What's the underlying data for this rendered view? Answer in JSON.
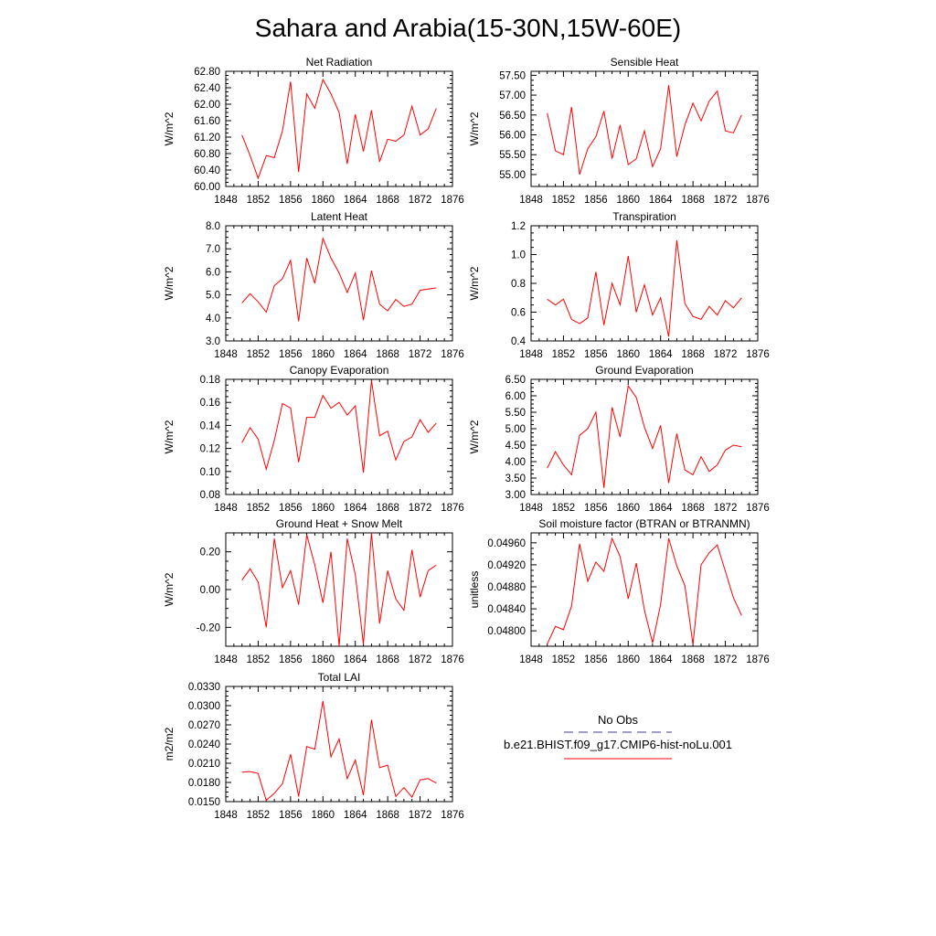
{
  "title": "Sahara and Arabia(15-30N,15W-60E)",
  "colors": {
    "series": "#ff0000",
    "obs": "#3b3b8c",
    "axis": "#000000"
  },
  "legend": {
    "obs_label": "No Obs",
    "model_label": "b.e21.BHIST.f09_g17.CMIP6-hist-noLu.001"
  },
  "chart_data": [
    {
      "type": "line",
      "title": "Net Radiation",
      "ylabel": "W/m^2",
      "xlim": [
        1848,
        1876
      ],
      "ylim": [
        60.0,
        62.8
      ],
      "x_ticks": [
        1848,
        1852,
        1856,
        1860,
        1864,
        1868,
        1872,
        1876
      ],
      "y_ticks": [
        "60.00",
        "60.40",
        "60.80",
        "61.20",
        "61.60",
        "62.00",
        "62.40",
        "62.80"
      ],
      "series": [
        {
          "x": [
            1850,
            1851,
            1852,
            1853,
            1854,
            1855,
            1856,
            1857,
            1858,
            1859,
            1860,
            1861,
            1862,
            1863,
            1864,
            1865,
            1866,
            1867,
            1868,
            1869,
            1870,
            1871,
            1872,
            1873,
            1874
          ],
          "values": [
            61.25,
            60.75,
            60.2,
            60.75,
            60.7,
            61.35,
            62.55,
            60.35,
            62.25,
            61.9,
            62.6,
            62.25,
            61.8,
            60.55,
            61.75,
            60.85,
            61.85,
            60.6,
            61.15,
            61.1,
            61.25,
            61.95,
            61.25,
            61.4,
            61.9
          ]
        }
      ]
    },
    {
      "type": "line",
      "title": "Sensible Heat",
      "ylabel": "W/m^2",
      "xlim": [
        1848,
        1876
      ],
      "ylim": [
        54.7,
        57.6
      ],
      "x_ticks": [
        1848,
        1852,
        1856,
        1860,
        1864,
        1868,
        1872,
        1876
      ],
      "y_ticks": [
        "55.00",
        "55.50",
        "56.00",
        "56.50",
        "57.00",
        "57.50"
      ],
      "series": [
        {
          "x": [
            1850,
            1851,
            1852,
            1853,
            1854,
            1855,
            1856,
            1857,
            1858,
            1859,
            1860,
            1861,
            1862,
            1863,
            1864,
            1865,
            1866,
            1867,
            1868,
            1869,
            1870,
            1871,
            1872,
            1873,
            1874
          ],
          "values": [
            56.55,
            55.6,
            55.5,
            56.7,
            55.0,
            55.65,
            55.95,
            56.6,
            55.4,
            56.25,
            55.25,
            55.4,
            56.1,
            55.2,
            55.65,
            57.25,
            55.45,
            56.25,
            56.8,
            56.35,
            56.85,
            57.1,
            56.1,
            56.05,
            56.5
          ]
        }
      ]
    },
    {
      "type": "line",
      "title": "Latent Heat",
      "ylabel": "W/m^2",
      "xlim": [
        1848,
        1876
      ],
      "ylim": [
        3.0,
        8.0
      ],
      "x_ticks": [
        1848,
        1852,
        1856,
        1860,
        1864,
        1868,
        1872,
        1876
      ],
      "y_ticks": [
        "3.0",
        "4.0",
        "5.0",
        "6.0",
        "7.0",
        "8.0"
      ],
      "series": [
        {
          "x": [
            1850,
            1851,
            1852,
            1853,
            1854,
            1855,
            1856,
            1857,
            1858,
            1859,
            1860,
            1861,
            1862,
            1863,
            1864,
            1865,
            1866,
            1867,
            1868,
            1869,
            1870,
            1871,
            1872,
            1873,
            1874
          ],
          "values": [
            4.65,
            5.05,
            4.7,
            4.25,
            5.4,
            5.7,
            6.5,
            3.85,
            6.6,
            5.5,
            7.45,
            6.6,
            5.95,
            5.1,
            5.95,
            3.9,
            6.05,
            4.6,
            4.3,
            4.8,
            4.5,
            4.6,
            5.2,
            5.25,
            5.3
          ]
        }
      ]
    },
    {
      "type": "line",
      "title": "Transpiration",
      "ylabel": "W/m^2",
      "xlim": [
        1848,
        1876
      ],
      "ylim": [
        0.4,
        1.2
      ],
      "x_ticks": [
        1848,
        1852,
        1856,
        1860,
        1864,
        1868,
        1872,
        1876
      ],
      "y_ticks": [
        "0.4",
        "0.6",
        "0.8",
        "1.0",
        "1.2"
      ],
      "series": [
        {
          "x": [
            1850,
            1851,
            1852,
            1853,
            1854,
            1855,
            1856,
            1857,
            1858,
            1859,
            1860,
            1861,
            1862,
            1863,
            1864,
            1865,
            1866,
            1867,
            1868,
            1869,
            1870,
            1871,
            1872,
            1873,
            1874
          ],
          "values": [
            0.69,
            0.65,
            0.69,
            0.55,
            0.52,
            0.56,
            0.88,
            0.51,
            0.8,
            0.65,
            0.99,
            0.6,
            0.79,
            0.58,
            0.7,
            0.43,
            1.1,
            0.66,
            0.57,
            0.55,
            0.64,
            0.58,
            0.68,
            0.63,
            0.7
          ]
        }
      ]
    },
    {
      "type": "line",
      "title": "Canopy Evaporation",
      "ylabel": "W/m^2",
      "xlim": [
        1848,
        1876
      ],
      "ylim": [
        0.08,
        0.18
      ],
      "x_ticks": [
        1848,
        1852,
        1856,
        1860,
        1864,
        1868,
        1872,
        1876
      ],
      "y_ticks": [
        "0.08",
        "0.10",
        "0.12",
        "0.14",
        "0.16",
        "0.18"
      ],
      "series": [
        {
          "x": [
            1850,
            1851,
            1852,
            1853,
            1854,
            1855,
            1856,
            1857,
            1858,
            1859,
            1860,
            1861,
            1862,
            1863,
            1864,
            1865,
            1866,
            1867,
            1868,
            1869,
            1870,
            1871,
            1872,
            1873,
            1874
          ],
          "values": [
            0.125,
            0.138,
            0.128,
            0.102,
            0.127,
            0.159,
            0.155,
            0.108,
            0.147,
            0.147,
            0.166,
            0.155,
            0.16,
            0.149,
            0.157,
            0.099,
            0.179,
            0.131,
            0.135,
            0.11,
            0.126,
            0.13,
            0.145,
            0.134,
            0.142
          ]
        }
      ]
    },
    {
      "type": "line",
      "title": "Ground Evaporation",
      "ylabel": "W/m^2",
      "xlim": [
        1848,
        1876
      ],
      "ylim": [
        3.0,
        6.5
      ],
      "x_ticks": [
        1848,
        1852,
        1856,
        1860,
        1864,
        1868,
        1872,
        1876
      ],
      "y_ticks": [
        "3.00",
        "3.50",
        "4.00",
        "4.50",
        "5.00",
        "5.50",
        "6.00",
        "6.50"
      ],
      "series": [
        {
          "x": [
            1850,
            1851,
            1852,
            1853,
            1854,
            1855,
            1856,
            1857,
            1858,
            1859,
            1860,
            1861,
            1862,
            1863,
            1864,
            1865,
            1866,
            1867,
            1868,
            1869,
            1870,
            1871,
            1872,
            1873,
            1874
          ],
          "values": [
            3.8,
            4.3,
            3.9,
            3.6,
            4.8,
            5.0,
            5.5,
            3.2,
            5.65,
            4.75,
            6.3,
            5.95,
            5.05,
            4.4,
            5.1,
            3.35,
            4.85,
            3.75,
            3.6,
            4.15,
            3.7,
            3.9,
            4.35,
            4.5,
            4.45
          ]
        }
      ]
    },
    {
      "type": "line",
      "title": "Ground Heat + Snow Melt",
      "ylabel": "W/m^2",
      "xlim": [
        1848,
        1876
      ],
      "ylim": [
        -0.3,
        0.3
      ],
      "x_ticks": [
        1848,
        1852,
        1856,
        1860,
        1864,
        1868,
        1872,
        1876
      ],
      "y_ticks": [
        "-0.20",
        "0.00",
        "0.20"
      ],
      "series": [
        {
          "x": [
            1850,
            1851,
            1852,
            1853,
            1854,
            1855,
            1856,
            1857,
            1858,
            1859,
            1860,
            1861,
            1862,
            1863,
            1864,
            1865,
            1866,
            1867,
            1868,
            1869,
            1870,
            1871,
            1872,
            1873,
            1874
          ],
          "values": [
            0.05,
            0.11,
            0.04,
            -0.2,
            0.27,
            0.01,
            0.1,
            -0.08,
            0.29,
            0.13,
            -0.07,
            0.2,
            -0.3,
            0.27,
            0.08,
            -0.29,
            0.3,
            -0.18,
            0.1,
            -0.05,
            -0.11,
            0.21,
            -0.04,
            0.1,
            0.13
          ]
        }
      ]
    },
    {
      "type": "line",
      "title": "Soil moisture factor (BTRAN or BTRANMN)",
      "ylabel": "unitless",
      "xlim": [
        1848,
        1876
      ],
      "ylim": [
        0.04772,
        0.04978
      ],
      "x_ticks": [
        1848,
        1852,
        1856,
        1860,
        1864,
        1868,
        1872,
        1876
      ],
      "y_ticks": [
        "0.04800",
        "0.04840",
        "0.04880",
        "0.04920",
        "0.04960"
      ],
      "series": [
        {
          "x": [
            1850,
            1851,
            1852,
            1853,
            1854,
            1855,
            1856,
            1857,
            1858,
            1859,
            1860,
            1861,
            1862,
            1863,
            1864,
            1865,
            1866,
            1867,
            1868,
            1869,
            1870,
            1871,
            1872,
            1873,
            1874
          ],
          "values": [
            0.04776,
            0.04808,
            0.04802,
            0.04845,
            0.04958,
            0.0489,
            0.04925,
            0.04908,
            0.04968,
            0.04935,
            0.04858,
            0.04923,
            0.04838,
            0.04778,
            0.04848,
            0.04968,
            0.04918,
            0.04882,
            0.04775,
            0.0492,
            0.04942,
            0.04956,
            0.04908,
            0.0486,
            0.04828
          ]
        }
      ]
    },
    {
      "type": "line",
      "title": "Total LAI",
      "ylabel": "m2/m2",
      "xlim": [
        1848,
        1876
      ],
      "ylim": [
        0.015,
        0.033
      ],
      "x_ticks": [
        1848,
        1852,
        1856,
        1860,
        1864,
        1868,
        1872,
        1876
      ],
      "y_ticks": [
        "0.0150",
        "0.0180",
        "0.0210",
        "0.0240",
        "0.0270",
        "0.0300",
        "0.0330"
      ],
      "series": [
        {
          "x": [
            1850,
            1851,
            1852,
            1853,
            1854,
            1855,
            1856,
            1857,
            1858,
            1859,
            1860,
            1861,
            1862,
            1863,
            1864,
            1865,
            1866,
            1867,
            1868,
            1869,
            1870,
            1871,
            1872,
            1873,
            1874
          ],
          "values": [
            0.0196,
            0.0197,
            0.0194,
            0.0152,
            0.0163,
            0.0178,
            0.0224,
            0.0158,
            0.0236,
            0.0232,
            0.0307,
            0.022,
            0.0248,
            0.0186,
            0.0215,
            0.016,
            0.0278,
            0.0203,
            0.0207,
            0.0158,
            0.0172,
            0.0157,
            0.0184,
            0.0186,
            0.0179
          ]
        }
      ]
    }
  ]
}
